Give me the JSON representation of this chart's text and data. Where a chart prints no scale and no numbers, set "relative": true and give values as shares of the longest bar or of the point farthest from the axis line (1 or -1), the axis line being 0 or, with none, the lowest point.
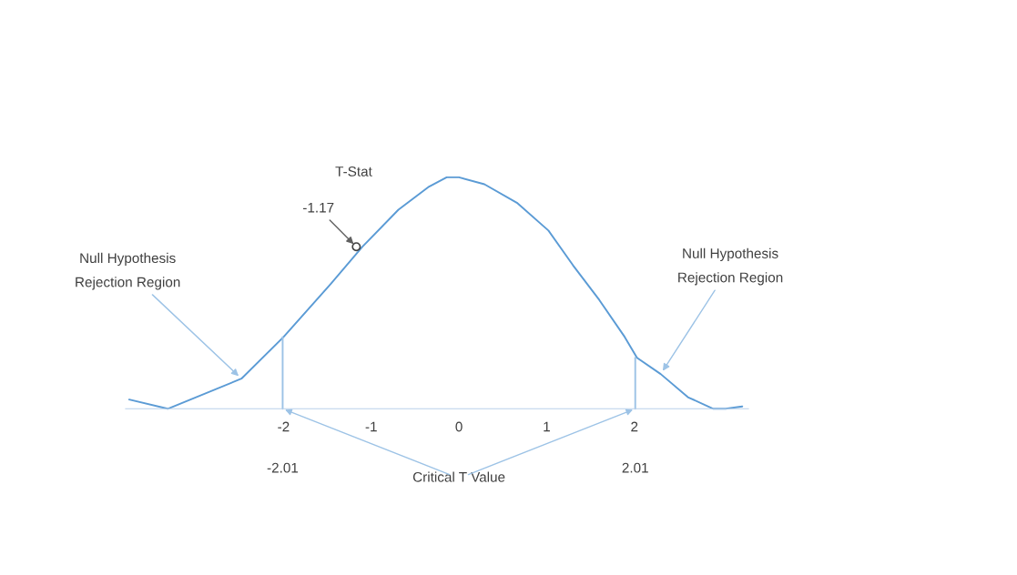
{
  "chart_data": {
    "type": "line",
    "relative": true,
    "grid": false,
    "legend": false,
    "xlim": [
      -3.8,
      3.3
    ],
    "xticks": [
      -2,
      -1,
      0,
      1,
      2
    ],
    "tick_labels": "x",
    "series": [
      {
        "type": "line",
        "color": "#5b9bd5",
        "marker": "none",
        "x": [
          -3.76,
          -3.32,
          -2.48,
          -2.0,
          -1.46,
          -1.1,
          -0.69,
          -0.34,
          -0.14,
          0,
          0.29,
          0.66,
          1.02,
          1.3,
          1.6,
          1.89,
          2.03,
          2.3,
          2.61,
          2.9,
          3.04,
          3.23
        ],
        "values": [
          0.04,
          0.0,
          0.13,
          0.31,
          0.54,
          0.7,
          0.86,
          0.96,
          1.0,
          1.0,
          0.97,
          0.89,
          0.77,
          0.62,
          0.47,
          0.31,
          0.22,
          0.15,
          0.05,
          0.0,
          0.0,
          0.01
        ]
      },
      {
        "type": "line",
        "color": "#9dc3e6",
        "marker": "none",
        "x": [
          -2.01,
          -2.01
        ],
        "values": [
          0,
          0.31
        ]
      },
      {
        "type": "line",
        "color": "#9dc3e6",
        "marker": "none",
        "x": [
          2.01,
          2.01
        ],
        "values": [
          0,
          0.22
        ]
      },
      {
        "type": "scatter",
        "color": "#404040",
        "marker": "circle",
        "x": [
          -1.17
        ],
        "values": [
          0.7
        ]
      }
    ],
    "annotations": [
      "T-Stat",
      {
        "text": "-1.17",
        "x": -1.17,
        "y": 0.7
      },
      {
        "text": "Null Hypothesis\nRejection Region",
        "x": -2.48,
        "y": 0.13
      },
      {
        "text": "Null Hypothesis\nRejection Region",
        "x": 2.3,
        "y": 0.15
      },
      "-2.01",
      "2.01",
      "Critical T Value"
    ]
  }
}
